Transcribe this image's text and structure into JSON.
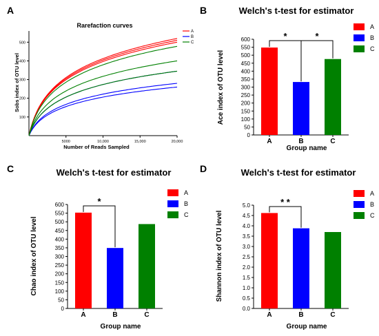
{
  "panel_labels": [
    "A",
    "B",
    "C",
    "D"
  ],
  "colors": {
    "A": "#ff0000",
    "B": "#0000ff",
    "C": "#008000"
  },
  "chart_data": [
    {
      "type": "line",
      "panel": "A",
      "title": "Rarefaction curves",
      "xlabel": "Number of Reads Sampled",
      "ylabel": "Sobs index of OTU level",
      "xlim": [
        0,
        20000
      ],
      "ylim": [
        0,
        560
      ],
      "xticks": [
        5000,
        10000,
        15000,
        20000
      ],
      "xtick_labels": [
        "5000",
        "10,000",
        "15,000",
        "20,000"
      ],
      "yticks": [
        100,
        200,
        300,
        400,
        500
      ],
      "legend": [
        "A",
        "B",
        "C"
      ],
      "legend_position": "top-right",
      "series": [
        {
          "name": "A",
          "color": "#ff0000",
          "finals": [
            520,
            510,
            500
          ]
        },
        {
          "name": "B",
          "color": "#0000ff",
          "finals": [
            345,
            280,
            260
          ]
        },
        {
          "name": "C",
          "color": "#008000",
          "finals": [
            478,
            400,
            345
          ]
        }
      ]
    },
    {
      "type": "bar",
      "panel": "B",
      "title": "Welch's t-test for estimator",
      "xlabel": "Group name",
      "ylabel": "Ace index of OTU level",
      "categories": [
        "A",
        "B",
        "C"
      ],
      "values": [
        548,
        332,
        476
      ],
      "colors": [
        "#ff0000",
        "#0000ff",
        "#008000"
      ],
      "ylim": [
        0,
        600
      ],
      "yticks": [
        0,
        50,
        100,
        150,
        200,
        250,
        300,
        350,
        400,
        450,
        500,
        550,
        600
      ],
      "tick_labels": [
        "0",
        "50",
        "100",
        "150",
        "200",
        "250",
        "300",
        "350",
        "400",
        "450",
        "500",
        "550",
        "600"
      ],
      "legend": [
        "A",
        "B",
        "C"
      ],
      "legend_position": "top-right",
      "significance": [
        {
          "from": 0,
          "to": 1,
          "label": "*"
        },
        {
          "from": 1,
          "to": 2,
          "label": "*"
        }
      ]
    },
    {
      "type": "bar",
      "panel": "C",
      "title": "Welch's t-test for estimator",
      "xlabel": "Group name",
      "ylabel": "Chao index of OTU level",
      "categories": [
        "A",
        "B",
        "C"
      ],
      "values": [
        553,
        349,
        487
      ],
      "colors": [
        "#ff0000",
        "#0000ff",
        "#008000"
      ],
      "ylim": [
        0,
        600
      ],
      "yticks": [
        0,
        50,
        100,
        150,
        200,
        250,
        300,
        350,
        400,
        450,
        500,
        550,
        600
      ],
      "tick_labels": [
        "0",
        "50",
        "100",
        "150",
        "200",
        "250",
        "300",
        "350",
        "400",
        "450",
        "500",
        "550",
        "600"
      ],
      "legend": [
        "A",
        "B",
        "C"
      ],
      "legend_position": "top-right",
      "significance": [
        {
          "from": 0,
          "to": 1,
          "label": "*"
        }
      ]
    },
    {
      "type": "bar",
      "panel": "D",
      "title": "Welch's t-test for estimator",
      "xlabel": "Group name",
      "ylabel": "Shannon index of OTU level",
      "categories": [
        "A",
        "B",
        "C"
      ],
      "values": [
        4.62,
        3.88,
        3.7
      ],
      "colors": [
        "#ff0000",
        "#0000ff",
        "#008000"
      ],
      "ylim": [
        0,
        5.0
      ],
      "yticks": [
        0,
        0.5,
        1.0,
        1.5,
        2.0,
        2.5,
        3.0,
        3.5,
        4.0,
        4.5,
        5.0
      ],
      "tick_labels": [
        "0.0",
        "0.5",
        "1.0",
        "1.5",
        "2.0",
        "2.5",
        "3.0",
        "3.5",
        "4.0",
        "4.5",
        "5.0"
      ],
      "legend": [
        "A",
        "B",
        "C"
      ],
      "legend_position": "top-right",
      "significance": [
        {
          "from": 0,
          "to": 1,
          "label": "* *"
        }
      ]
    }
  ]
}
